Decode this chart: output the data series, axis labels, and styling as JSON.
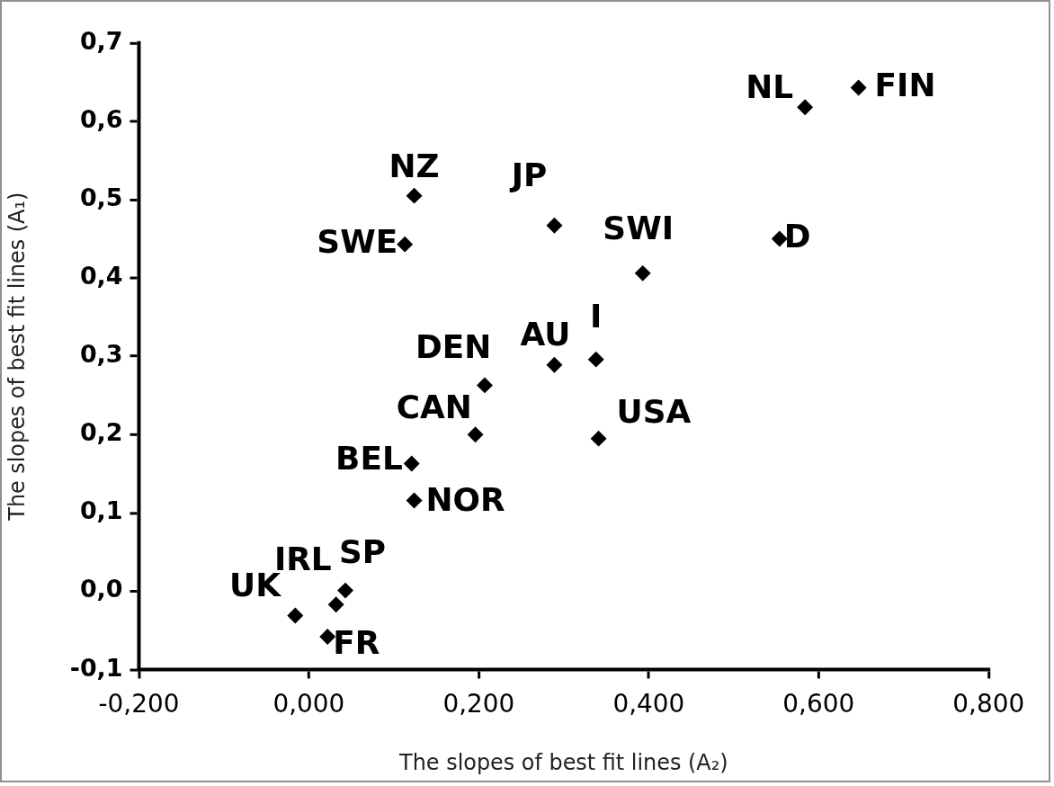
{
  "chart_data": {
    "type": "scatter",
    "xlabel": "The slopes of best fit lines (A₂)",
    "ylabel": "The slopes of best fit lines (A₁)",
    "xlim": [
      -0.2,
      0.8
    ],
    "xticks": [
      {
        "value": -0.2,
        "label": "-0,200"
      },
      {
        "value": 0,
        "label": "0,000"
      },
      {
        "value": 0.2,
        "label": "0,200"
      },
      {
        "value": 0.4,
        "label": "0,400"
      },
      {
        "value": 0.6,
        "label": "0,600"
      },
      {
        "value": 0.8,
        "label": "0,800"
      }
    ],
    "ylim": [
      -0.1,
      0.7
    ],
    "yticks": [
      {
        "value": -0.1,
        "label": "-0,1"
      },
      {
        "value": 0,
        "label": "0,0"
      },
      {
        "value": 0.1,
        "label": "0,1"
      },
      {
        "value": 0.2,
        "label": "0,2"
      },
      {
        "value": 0.3,
        "label": "0,3"
      },
      {
        "value": 0.4,
        "label": "0,4"
      },
      {
        "value": 0.5,
        "label": "0,5"
      },
      {
        "value": 0.6,
        "label": "0,6"
      },
      {
        "value": 0.7,
        "label": "0,7"
      }
    ],
    "grid": false,
    "legend": false,
    "marker": "diamond",
    "series": [
      {
        "name": "FIN",
        "color": "#000000",
        "x": [
          0.647
        ],
        "values": [
          0.643
        ]
      },
      {
        "name": "NL",
        "color": "#000000",
        "x": [
          0.584
        ],
        "values": [
          0.618
        ]
      },
      {
        "name": "NZ",
        "color": "#000000",
        "x": [
          0.124
        ],
        "values": [
          0.505
        ]
      },
      {
        "name": "JP",
        "color": "#000000",
        "x": [
          0.289
        ],
        "values": [
          0.467
        ]
      },
      {
        "name": "SWE",
        "color": "#000000",
        "x": [
          0.113
        ],
        "values": [
          0.443
        ]
      },
      {
        "name": "D",
        "color": "#000000",
        "x": [
          0.554
        ],
        "values": [
          0.45
        ]
      },
      {
        "name": "SWI",
        "color": "#000000",
        "x": [
          0.393
        ],
        "values": [
          0.406
        ]
      },
      {
        "name": "I",
        "color": "#000000",
        "x": [
          0.338
        ],
        "values": [
          0.296
        ]
      },
      {
        "name": "AU",
        "color": "#000000",
        "x": [
          0.289
        ],
        "values": [
          0.289
        ]
      },
      {
        "name": "DEN",
        "color": "#000000",
        "x": [
          0.207
        ],
        "values": [
          0.263
        ]
      },
      {
        "name": "CAN",
        "color": "#000000",
        "x": [
          0.196
        ],
        "values": [
          0.2
        ]
      },
      {
        "name": "USA",
        "color": "#000000",
        "x": [
          0.341
        ],
        "values": [
          0.195
        ]
      },
      {
        "name": "BEL",
        "color": "#000000",
        "x": [
          0.121
        ],
        "values": [
          0.163
        ]
      },
      {
        "name": "NOR",
        "color": "#000000",
        "x": [
          0.124
        ],
        "values": [
          0.116
        ]
      },
      {
        "name": "SP",
        "color": "#000000",
        "x": [
          0.043
        ],
        "values": [
          0.001
        ]
      },
      {
        "name": "IRL",
        "color": "#000000",
        "x": [
          0.032
        ],
        "values": [
          -0.017
        ]
      },
      {
        "name": "UK",
        "color": "#000000",
        "x": [
          -0.016
        ],
        "values": [
          -0.031
        ]
      },
      {
        "name": "FR",
        "color": "#000000",
        "x": [
          0.022
        ],
        "values": [
          -0.058
        ]
      }
    ]
  }
}
